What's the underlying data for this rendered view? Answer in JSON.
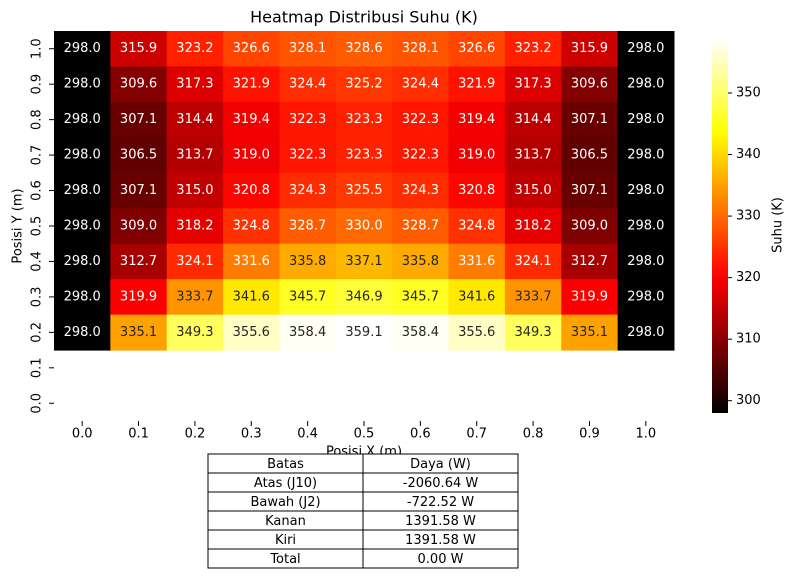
{
  "chart_data": {
    "type": "heatmap",
    "title": "Heatmap Distribusi Suhu (K)",
    "xlabel": "Posisi X (m)",
    "ylabel": "Posisi Y (m)",
    "x": [
      "0.0",
      "0.1",
      "0.2",
      "0.3",
      "0.4",
      "0.5",
      "0.6",
      "0.7",
      "0.8",
      "0.9",
      "1.0"
    ],
    "y": [
      "1.0",
      "0.9",
      "0.8",
      "0.7",
      "0.6",
      "0.5",
      "0.4",
      "0.3",
      "0.2",
      "0.1",
      "0.0"
    ],
    "colormap": "hot",
    "values": [
      [
        298.0,
        315.9,
        323.2,
        326.6,
        328.1,
        328.6,
        328.1,
        326.6,
        323.2,
        315.9,
        298.0
      ],
      [
        298.0,
        309.6,
        317.3,
        321.9,
        324.4,
        325.2,
        324.4,
        321.9,
        317.3,
        309.6,
        298.0
      ],
      [
        298.0,
        307.1,
        314.4,
        319.4,
        322.3,
        323.3,
        322.3,
        319.4,
        314.4,
        307.1,
        298.0
      ],
      [
        298.0,
        306.5,
        313.7,
        319.0,
        322.3,
        323.3,
        322.3,
        319.0,
        313.7,
        306.5,
        298.0
      ],
      [
        298.0,
        307.1,
        315.0,
        320.8,
        324.3,
        325.5,
        324.3,
        320.8,
        315.0,
        307.1,
        298.0
      ],
      [
        298.0,
        309.0,
        318.2,
        324.8,
        328.7,
        330.0,
        328.7,
        324.8,
        318.2,
        309.0,
        298.0
      ],
      [
        298.0,
        312.7,
        324.1,
        331.6,
        335.8,
        337.1,
        335.8,
        331.6,
        324.1,
        312.7,
        298.0
      ],
      [
        298.0,
        319.9,
        333.7,
        341.6,
        345.7,
        346.9,
        345.7,
        341.6,
        333.7,
        319.9,
        298.0
      ],
      [
        298.0,
        335.1,
        349.3,
        355.6,
        358.4,
        359.1,
        358.4,
        355.6,
        349.3,
        335.1,
        298.0
      ],
      [
        null,
        null,
        null,
        null,
        null,
        null,
        null,
        null,
        null,
        null,
        null
      ],
      [
        null,
        null,
        null,
        null,
        null,
        null,
        null,
        null,
        null,
        null,
        null
      ]
    ],
    "value_labels": [
      [
        "298.0",
        "315.9",
        "323.2",
        "326.6",
        "328.1",
        "328.6",
        "328.1",
        "326.6",
        "323.2",
        "315.9",
        "298.0"
      ],
      [
        "298.0",
        "309.6",
        "317.3",
        "321.9",
        "324.4",
        "325.2",
        "324.4",
        "321.9",
        "317.3",
        "309.6",
        "298.0"
      ],
      [
        "298.0",
        "307.1",
        "314.4",
        "319.4",
        "322.3",
        "323.3",
        "322.3",
        "319.4",
        "314.4",
        "307.1",
        "298.0"
      ],
      [
        "298.0",
        "306.5",
        "313.7",
        "319.0",
        "322.3",
        "323.3",
        "322.3",
        "319.0",
        "313.7",
        "306.5",
        "298.0"
      ],
      [
        "298.0",
        "307.1",
        "315.0",
        "320.8",
        "324.3",
        "325.5",
        "324.3",
        "320.8",
        "315.0",
        "307.1",
        "298.0"
      ],
      [
        "298.0",
        "309.0",
        "318.2",
        "324.8",
        "328.7",
        "330.0",
        "328.7",
        "324.8",
        "318.2",
        "309.0",
        "298.0"
      ],
      [
        "298.0",
        "312.7",
        "324.1",
        "331.6",
        "335.8",
        "337.1",
        "335.8",
        "331.6",
        "324.1",
        "312.7",
        "298.0"
      ],
      [
        "298.0",
        "319.9",
        "333.7",
        "341.6",
        "345.7",
        "346.9",
        "345.7",
        "341.6",
        "333.7",
        "319.9",
        "298.0"
      ],
      [
        "298.0",
        "335.1",
        "349.3",
        "355.6",
        "358.4",
        "359.1",
        "358.4",
        "355.6",
        "349.3",
        "335.1",
        "298.0"
      ],
      [
        null,
        null,
        null,
        null,
        null,
        null,
        null,
        null,
        null,
        null,
        null
      ],
      [
        null,
        null,
        null,
        null,
        null,
        null,
        null,
        null,
        null,
        null,
        null
      ]
    ],
    "colorbar": {
      "label": "Suhu (K)",
      "lim": [
        298.0,
        359.1
      ],
      "ticks": [
        300,
        310,
        320,
        330,
        340,
        350
      ]
    }
  },
  "table": {
    "header": [
      "Batas",
      "Daya (W)"
    ],
    "rows": [
      [
        "Atas (J10)",
        "-2060.64 W"
      ],
      [
        "Bawah (J2)",
        "-722.52 W"
      ],
      [
        "Kanan",
        "1391.58 W"
      ],
      [
        "Kiri",
        "1391.58 W"
      ],
      [
        "Total",
        "0.00 W"
      ]
    ]
  }
}
